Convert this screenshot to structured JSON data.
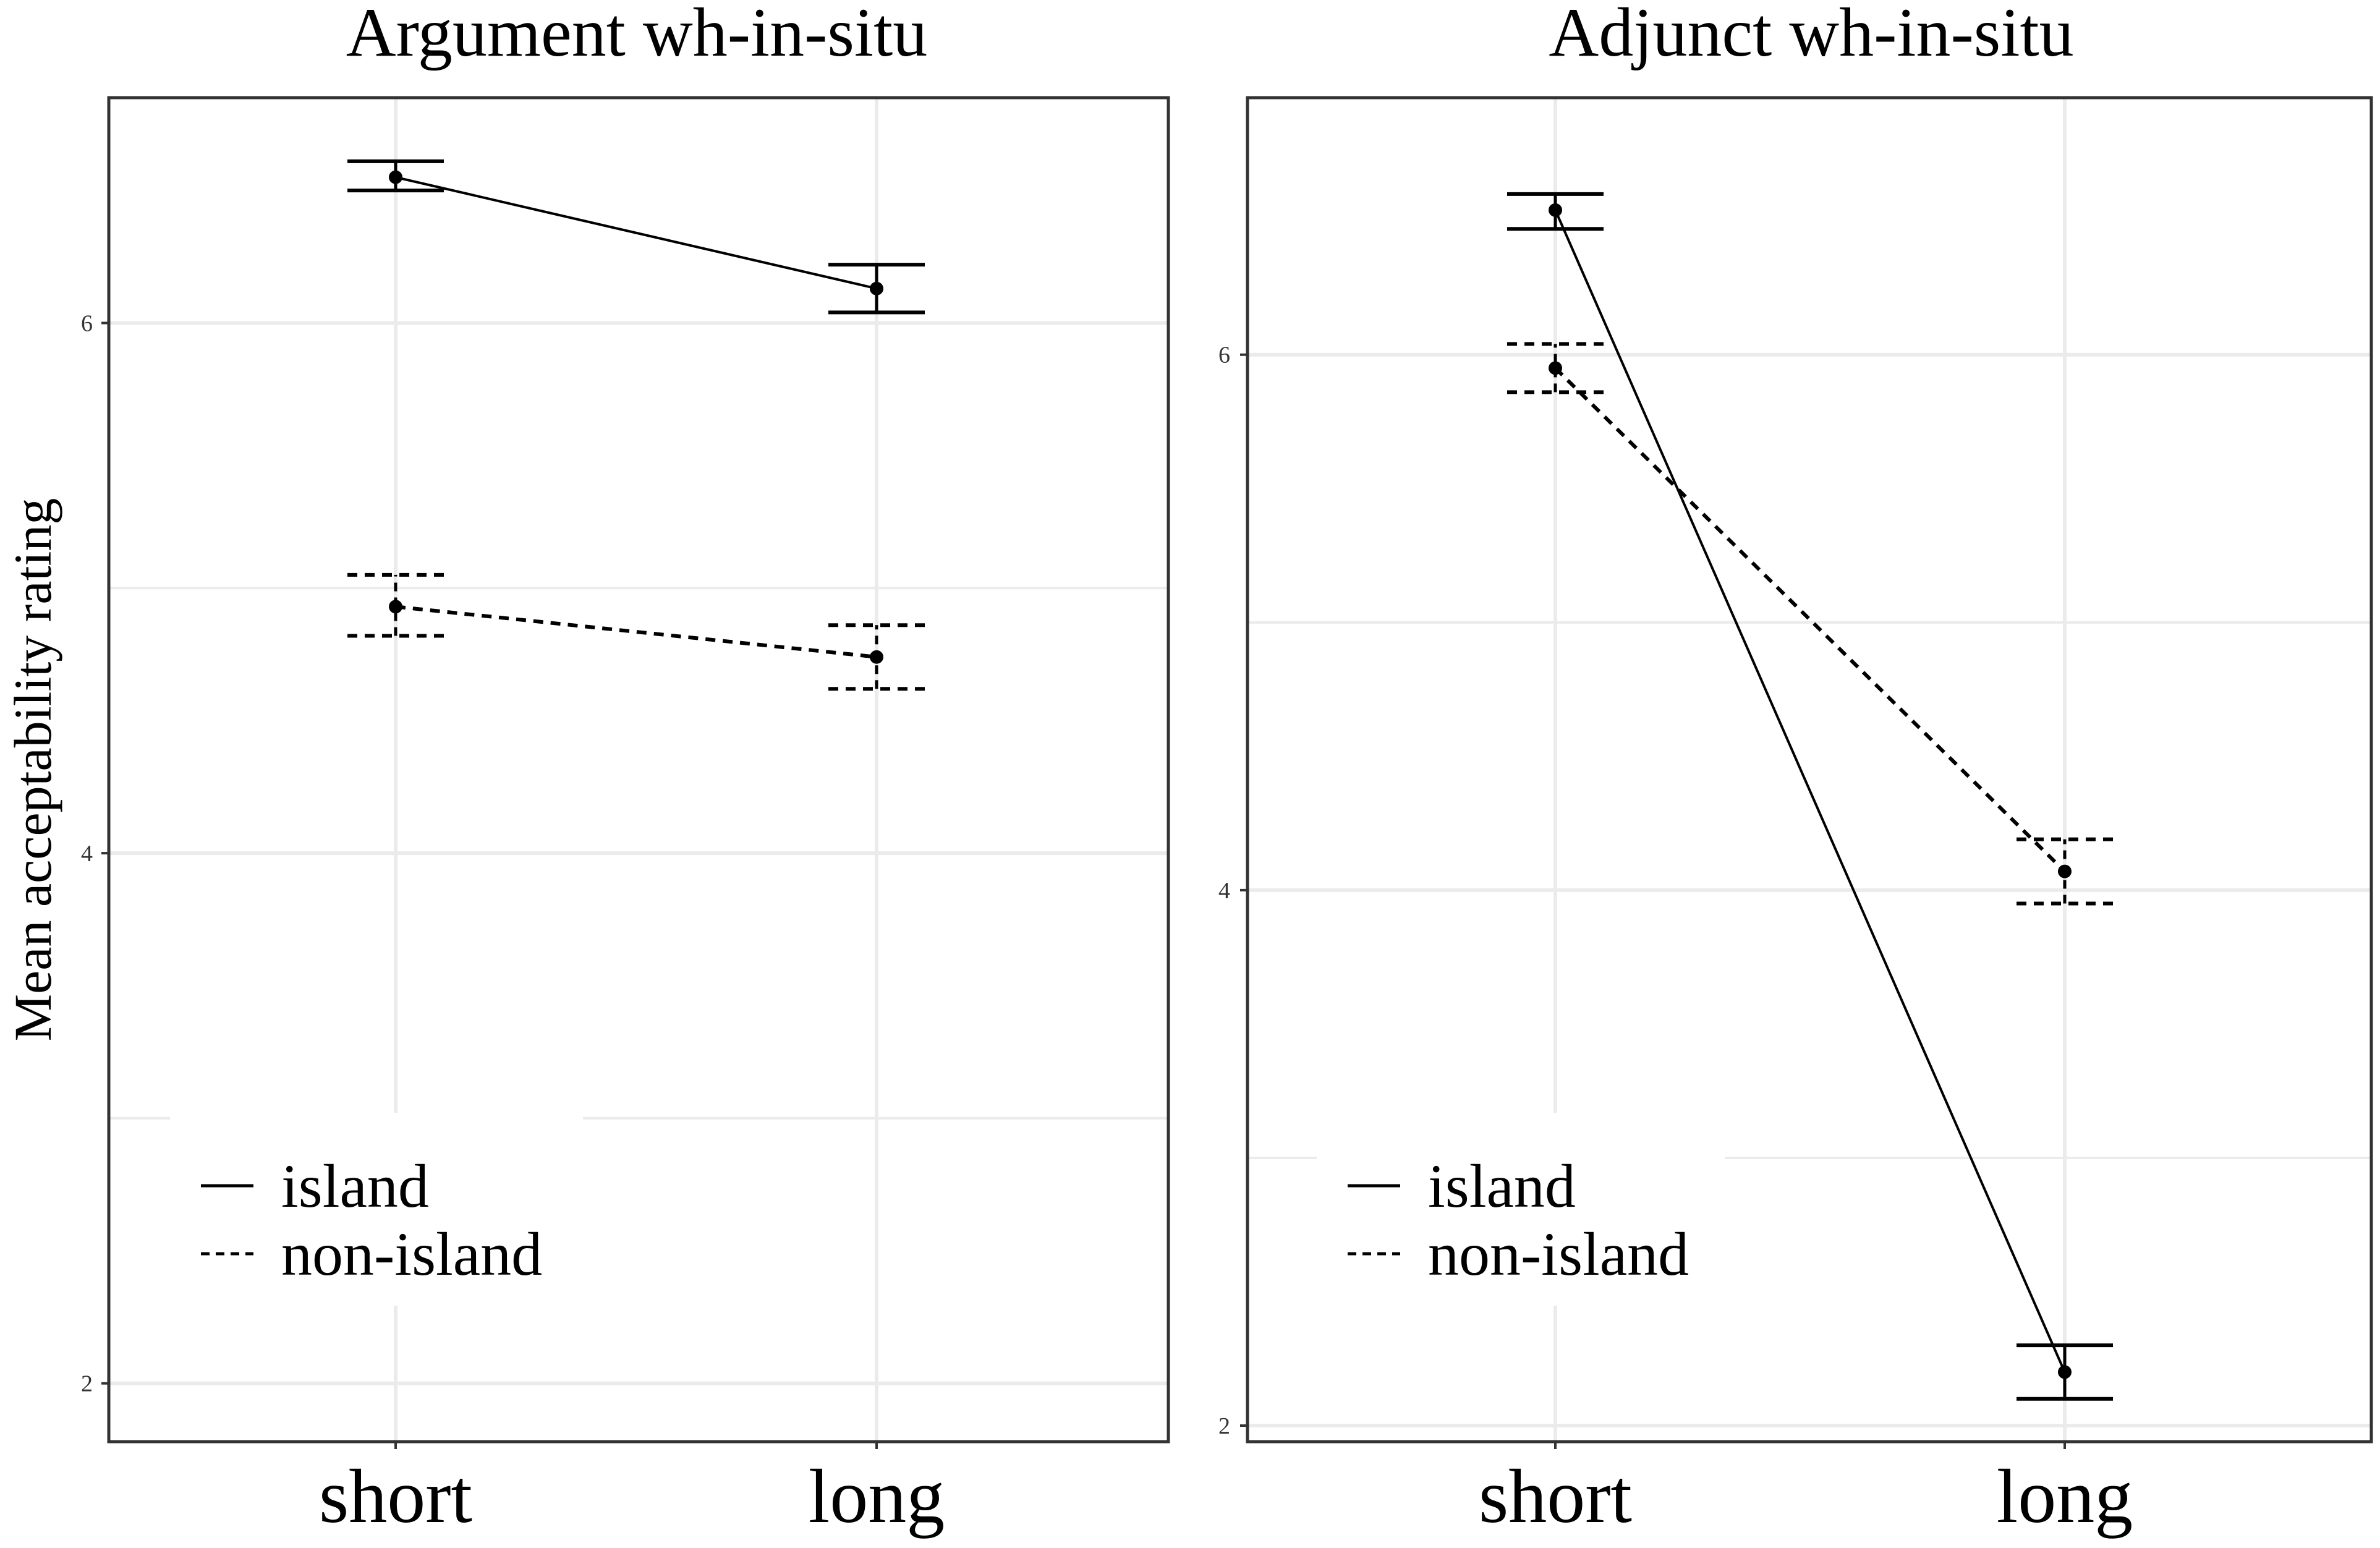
{
  "chart_data": [
    {
      "type": "line",
      "title": "Argument wh-in-situ",
      "xlabel": "",
      "ylabel": "Mean acceptability rating",
      "categories": [
        "short",
        "long"
      ],
      "ylim": [
        1.78,
        6.85
      ],
      "yticks": [
        "2",
        "4",
        "6"
      ],
      "grid": true,
      "legend_position": "bottom-left",
      "series": [
        {
          "name": "island",
          "linestyle": "solid",
          "values": [
            6.55,
            6.13
          ],
          "error": [
            [
              6.5,
              6.61
            ],
            [
              6.04,
              6.22
            ]
          ]
        },
        {
          "name": "non-island",
          "linestyle": "dashed",
          "values": [
            4.93,
            4.74
          ],
          "error": [
            [
              4.82,
              5.05
            ],
            [
              4.62,
              4.86
            ]
          ]
        }
      ]
    },
    {
      "type": "line",
      "title": "Adjunct wh-in-situ",
      "xlabel": "",
      "ylabel": "",
      "categories": [
        "short",
        "long"
      ],
      "ylim": [
        1.94,
        6.96
      ],
      "yticks": [
        "2",
        "4",
        "6"
      ],
      "grid": true,
      "legend_position": "bottom-left",
      "series": [
        {
          "name": "island",
          "linestyle": "solid",
          "values": [
            6.54,
            2.2
          ],
          "error": [
            [
              6.47,
              6.6
            ],
            [
              2.1,
              2.3
            ]
          ]
        },
        {
          "name": "non-island",
          "linestyle": "dashed",
          "values": [
            5.95,
            4.07
          ],
          "error": [
            [
              5.86,
              6.04
            ],
            [
              3.95,
              4.19
            ]
          ]
        }
      ]
    }
  ],
  "colors": {
    "ink": "#000000",
    "grid": "#ebebeb",
    "panel_border": "#333333",
    "background": "#ffffff"
  }
}
